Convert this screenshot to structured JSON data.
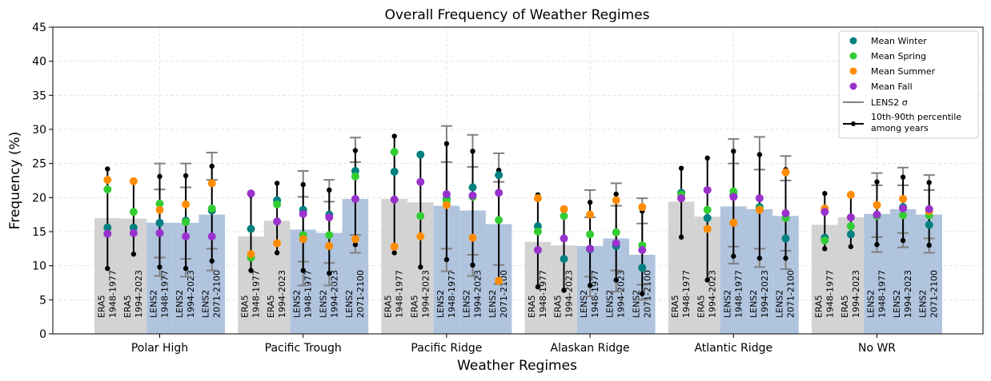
{
  "chart_data": {
    "type": "bar",
    "title": "Overall Frequency of Weather Regimes",
    "xlabel": "Weather Regimes",
    "ylabel": "Frequency (%)",
    "ylim": [
      0,
      45
    ],
    "yticks": [
      0,
      5,
      10,
      15,
      20,
      25,
      30,
      35,
      40,
      45
    ],
    "grid": true,
    "legend_position": "top-right",
    "categories": [
      "Polar High",
      "Pacific Trough",
      "Pacific Ridge",
      "Alaskan Ridge",
      "Atlantic Ridge",
      "No WR"
    ],
    "datasets": [
      {
        "source": "ERA5",
        "period": "1948-1977"
      },
      {
        "source": "ERA5",
        "period": "1994-2023"
      },
      {
        "source": "LENS2",
        "period": "1948-1977"
      },
      {
        "source": "LENS2",
        "period": "1994-2023"
      },
      {
        "source": "LENS2",
        "period": "2071-2100"
      }
    ],
    "colors": {
      "era5_bar": "#d3d3d3",
      "lens2_bar": "#b0c4de",
      "winter": "#008080",
      "spring": "#32cd32",
      "summer": "#ff8c00",
      "fall": "#9932cc",
      "sigma": "#808080",
      "percentile": "#000000"
    },
    "legend": {
      "winter": "Mean Winter",
      "spring": "Mean Spring",
      "summer": "Mean Summer",
      "fall": "Mean Fall",
      "sigma": "LENS2 σ",
      "percentile_line1": "10th-90th percentile",
      "percentile_line2": "among years"
    },
    "groups": [
      {
        "name": "Polar High",
        "bars": [
          {
            "value": 17.0,
            "winter": 15.6,
            "spring": 21.2,
            "summer": 22.6,
            "fall": 14.7,
            "p10": 9.6,
            "p90": 24.2
          },
          {
            "value": 16.9,
            "winter": 15.6,
            "spring": 17.9,
            "summer": 22.4,
            "fall": 14.8,
            "p10": 11.7,
            "p90": null
          },
          {
            "value": 16.3,
            "winter": 16.3,
            "spring": 19.1,
            "summer": 18.2,
            "fall": 14.8,
            "p10": 9.8,
            "p90": 23.1,
            "sd_low": 8.5,
            "sd_high": 25.0,
            "sd_mid_low": 11.2,
            "sd_mid_high": 21.2
          },
          {
            "value": 16.3,
            "winter": 16.6,
            "spring": 16.4,
            "summer": 19.0,
            "fall": 14.3,
            "p10": 9.6,
            "p90": 23.2,
            "sd_low": 8.4,
            "sd_high": 25.0,
            "sd_mid_low": 11.0,
            "sd_mid_high": 21.5
          },
          {
            "value": 17.5,
            "winter": 18.1,
            "spring": 18.4,
            "summer": 22.1,
            "fall": 14.3,
            "p10": 10.7,
            "p90": 24.6,
            "sd_low": 9.3,
            "sd_high": 26.6,
            "sd_mid_low": 12.5,
            "sd_mid_high": 22.6
          }
        ]
      },
      {
        "name": "Pacific Trough",
        "bars": [
          {
            "value": 14.3,
            "winter": 15.4,
            "spring": 11.2,
            "summer": 11.7,
            "fall": 20.6,
            "p10": 9.3,
            "p90": 20.3
          },
          {
            "value": 16.6,
            "winter": 19.6,
            "spring": 19.0,
            "summer": 13.3,
            "fall": 16.5,
            "p10": 11.9,
            "p90": 22.1
          },
          {
            "value": 15.3,
            "winter": 18.2,
            "spring": 14.5,
            "summer": 13.9,
            "fall": 17.6,
            "p10": 9.3,
            "p90": 21.9,
            "sd_low": 7.1,
            "sd_high": 23.9,
            "sd_mid_low": 10.6,
            "sd_mid_high": 20.1
          },
          {
            "value": 14.8,
            "winter": 17.5,
            "spring": 14.5,
            "summer": 12.9,
            "fall": 17.1,
            "p10": 8.9,
            "p90": 21.1,
            "sd_low": 7.1,
            "sd_high": 22.6,
            "sd_mid_low": 10.4,
            "sd_mid_high": 19.4
          },
          {
            "value": 19.8,
            "winter": 23.9,
            "spring": 23.1,
            "summer": 13.9,
            "fall": 19.8,
            "p10": 13.1,
            "p90": 26.9,
            "sd_low": 11.9,
            "sd_high": 28.8,
            "sd_mid_low": 14.5,
            "sd_mid_high": 25.2
          }
        ]
      },
      {
        "name": "Pacific Ridge",
        "bars": [
          {
            "value": 19.8,
            "winter": 23.8,
            "spring": 26.7,
            "summer": 12.8,
            "fall": 19.7,
            "p10": 11.9,
            "p90": 29.0
          },
          {
            "value": 19.3,
            "winter": 26.3,
            "spring": 17.3,
            "summer": 14.3,
            "fall": 22.3,
            "p10": 9.8,
            "p90": null
          },
          {
            "value": 18.8,
            "winter": 19.8,
            "spring": 19.5,
            "summer": 18.9,
            "fall": 20.5,
            "p10": 10.9,
            "p90": 27.9,
            "sd_low": 9.2,
            "sd_high": 30.5,
            "sd_mid_low": 12.5,
            "sd_mid_high": 25.2
          },
          {
            "value": 18.1,
            "winter": 21.5,
            "spring": 20.1,
            "summer": 14.1,
            "fall": 20.3,
            "p10": 10.1,
            "p90": 26.8,
            "sd_low": 8.5,
            "sd_high": 29.2,
            "sd_mid_low": 11.6,
            "sd_mid_high": 24.5
          },
          {
            "value": 16.1,
            "winter": 23.3,
            "spring": 16.7,
            "summer": 7.8,
            "fall": 20.7,
            "p10": 8.0,
            "p90": 24.0,
            "sd_low": 7.3,
            "sd_high": 26.5,
            "sd_mid_low": 10.1,
            "sd_mid_high": 22.3
          }
        ]
      },
      {
        "name": "Alaskan Ridge",
        "bars": [
          {
            "value": 13.5,
            "winter": 15.8,
            "spring": 15.0,
            "summer": 19.9,
            "fall": 12.3,
            "p10": 6.9,
            "p90": 20.4
          },
          {
            "value": 13.0,
            "winter": 11.0,
            "spring": 17.3,
            "summer": 18.3,
            "fall": 14.0,
            "p10": 6.4,
            "p90": null
          },
          {
            "value": 12.9,
            "winter": 12.4,
            "spring": 14.6,
            "summer": 17.5,
            "fall": 12.5,
            "p10": 7.1,
            "p90": 19.3,
            "sd_low": 5.5,
            "sd_high": 21.1,
            "sd_mid_low": 8.4,
            "sd_mid_high": 17.1
          },
          {
            "value": 14.0,
            "winter": 12.9,
            "spring": 14.9,
            "summer": 19.6,
            "fall": 13.3,
            "p10": 7.9,
            "p90": 20.5,
            "sd_low": 6.2,
            "sd_high": 22.1,
            "sd_mid_low": 9.3,
            "sd_mid_high": 18.8
          },
          {
            "value": 11.6,
            "winter": 9.7,
            "spring": 13.0,
            "summer": 18.6,
            "fall": 12.3,
            "p10": 5.9,
            "p90": 18.0,
            "sd_low": 5.0,
            "sd_high": 19.9,
            "sd_mid_low": 7.2,
            "sd_mid_high": 16.2
          }
        ]
      },
      {
        "name": "Atlantic Ridge",
        "bars": [
          {
            "value": 19.4,
            "winter": 20.7,
            "spring": 20.4,
            "summer": 19.9,
            "fall": 19.9,
            "p10": 14.2,
            "p90": 24.3
          },
          {
            "value": 17.2,
            "winter": 17.0,
            "spring": 18.2,
            "summer": 15.4,
            "fall": 21.1,
            "p10": 7.9,
            "p90": 25.8
          },
          {
            "value": 18.7,
            "winter": 20.3,
            "spring": 20.9,
            "summer": 16.3,
            "fall": 20.1,
            "p10": 11.4,
            "p90": 26.8,
            "sd_low": 10.3,
            "sd_high": 28.6,
            "sd_mid_low": 12.8,
            "sd_mid_high": 25.0
          },
          {
            "value": 18.3,
            "winter": 18.6,
            "spring": 18.3,
            "summer": 18.2,
            "fall": 19.9,
            "p10": 11.1,
            "p90": 26.3,
            "sd_low": 9.8,
            "sd_high": 28.9,
            "sd_mid_low": 12.5,
            "sd_mid_high": 24.1
          },
          {
            "value": 17.3,
            "winter": 14.0,
            "spring": 17.0,
            "summer": 23.7,
            "fall": 17.7,
            "p10": 11.1,
            "p90": 24.1,
            "sd_low": 9.5,
            "sd_high": 26.1,
            "sd_mid_low": 12.2,
            "sd_mid_high": 22.5
          }
        ]
      },
      {
        "name": "No WR",
        "bars": [
          {
            "value": 16.0,
            "winter": 14.1,
            "spring": 13.7,
            "summer": 18.4,
            "fall": 17.9,
            "p10": 12.5,
            "p90": 20.6
          },
          {
            "value": 17.1,
            "winter": 14.6,
            "spring": 15.8,
            "summer": 20.4,
            "fall": 17.1,
            "p10": 12.8,
            "p90": null
          },
          {
            "value": 17.6,
            "winter": 17.3,
            "spring": 17.3,
            "summer": 18.9,
            "fall": 17.5,
            "p10": 13.1,
            "p90": 22.3,
            "sd_low": 12.0,
            "sd_high": 23.6,
            "sd_mid_low": 14.2,
            "sd_mid_high": 21.8
          },
          {
            "value": 18.3,
            "winter": 18.6,
            "spring": 17.4,
            "summer": 19.8,
            "fall": 18.4,
            "p10": 13.7,
            "p90": 23.0,
            "sd_low": 12.7,
            "sd_high": 24.4,
            "sd_mid_low": 14.8,
            "sd_mid_high": 21.8
          },
          {
            "value": 17.5,
            "winter": 16.0,
            "spring": 17.4,
            "summer": 18.0,
            "fall": 18.3,
            "p10": 13.0,
            "p90": 22.2,
            "sd_low": 11.9,
            "sd_high": 23.3,
            "sd_mid_low": 14.0,
            "sd_mid_high": 21.1
          }
        ]
      }
    ]
  }
}
